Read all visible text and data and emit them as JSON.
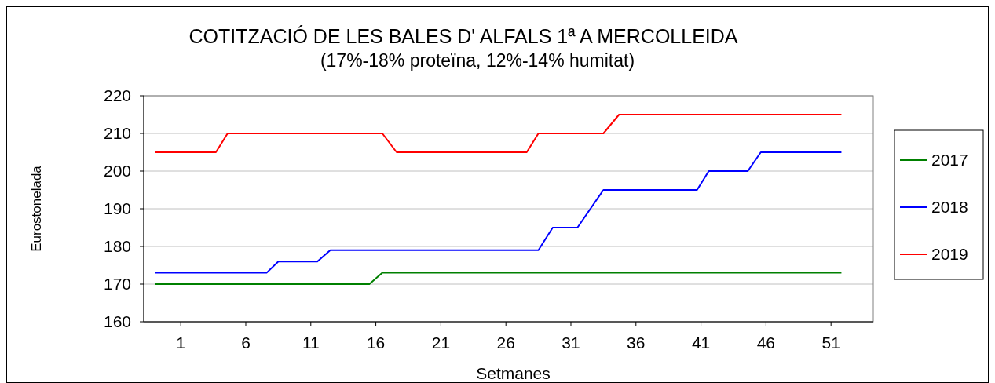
{
  "chart_data": {
    "type": "line",
    "title": "COTITZACIÓ DE LES BALES D' ALFALS 1ª A MERCOLLEIDA",
    "subtitle": "(17%-18% proteïna, 12%-14% humitat)",
    "xlabel": "Setmanes",
    "ylabel": "Eurostonelada",
    "xlim": [
      -1.85,
      54.25
    ],
    "xticks": [
      1,
      6,
      11,
      16,
      21,
      26,
      31,
      36,
      41,
      46,
      51
    ],
    "ylim": [
      160,
      220
    ],
    "yticks": [
      160,
      170,
      180,
      190,
      200,
      210,
      220
    ],
    "grid": "y",
    "legend": "right",
    "marker": "none",
    "line_style": "solid",
    "series": [
      {
        "name": "2017",
        "color": "#008000",
        "x": [
          -1,
          15.5,
          16.5,
          51.8
        ],
        "values": [
          170,
          170,
          173,
          173
        ]
      },
      {
        "name": "2018",
        "color": "#0000ff",
        "x": [
          -1,
          7.6,
          8.5,
          11.5,
          12.5,
          28.5,
          29.6,
          31.5,
          33.5,
          40.7,
          41.6,
          44.6,
          45.6,
          51.8
        ],
        "values": [
          173,
          173,
          176,
          176,
          179,
          179,
          185,
          185,
          195,
          195,
          200,
          200,
          205,
          205
        ]
      },
      {
        "name": "2019",
        "color": "#ff0000",
        "x": [
          -1,
          3.7,
          4.6,
          16.5,
          17.6,
          27.6,
          28.5,
          33.5,
          34.7,
          51.8
        ],
        "values": [
          205,
          205,
          210,
          210,
          205,
          205,
          210,
          210,
          215,
          215
        ]
      }
    ]
  }
}
